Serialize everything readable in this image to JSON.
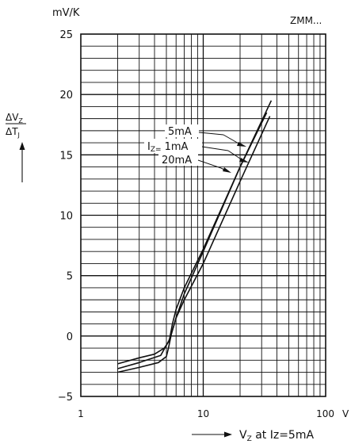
{
  "chart_data": {
    "type": "line",
    "title": "ZMM...",
    "ylabel_unit": "mV/K",
    "ylabel_num": "ΔV",
    "ylabel_num_sub": "Z",
    "ylabel_den": "ΔT",
    "ylabel_den_sub": "J",
    "xlabel": "V",
    "xlabel_sub": "Z",
    "xlabel_tail": " at Iz=5mA",
    "x_unit": "V",
    "x_scale": "log",
    "xlim": [
      1,
      100
    ],
    "ylim": [
      -5,
      25
    ],
    "x_ticks": [
      1,
      10,
      100
    ],
    "x_tick_labels": [
      "1",
      "10",
      "100"
    ],
    "y_ticks": [
      -5,
      0,
      5,
      10,
      15,
      20,
      25
    ],
    "y_tick_labels": [
      "−5",
      "0",
      "5",
      "10",
      "15",
      "20",
      "25"
    ],
    "grid": true,
    "annotation_prefix": "I",
    "annotation_prefix_sub": "Z=",
    "series": [
      {
        "name": "5mA",
        "x": [
          2,
          3,
          4.3,
          5,
          5.2,
          5.5,
          6,
          7,
          10,
          20,
          35
        ],
        "y": [
          -3.0,
          -2.6,
          -2.2,
          -1.7,
          -1.0,
          0.2,
          1.5,
          3.0,
          6.0,
          12.8,
          18.2
        ]
      },
      {
        "name": "1mA",
        "x": [
          2,
          3,
          4.5,
          5.3,
          5.6,
          6,
          7,
          10,
          20,
          33
        ],
        "y": [
          -2.7,
          -2.2,
          -1.6,
          -0.3,
          1.0,
          2.2,
          4.0,
          7.2,
          14.0,
          18.5
        ]
      },
      {
        "name": "20mA",
        "x": [
          2,
          3,
          4,
          4.8,
          5.2,
          5.5,
          6,
          7,
          10,
          20,
          36
        ],
        "y": [
          -2.3,
          -1.8,
          -1.5,
          -1.0,
          -0.5,
          0.2,
          1.5,
          3.5,
          7.0,
          14.0,
          19.5
        ]
      }
    ]
  }
}
